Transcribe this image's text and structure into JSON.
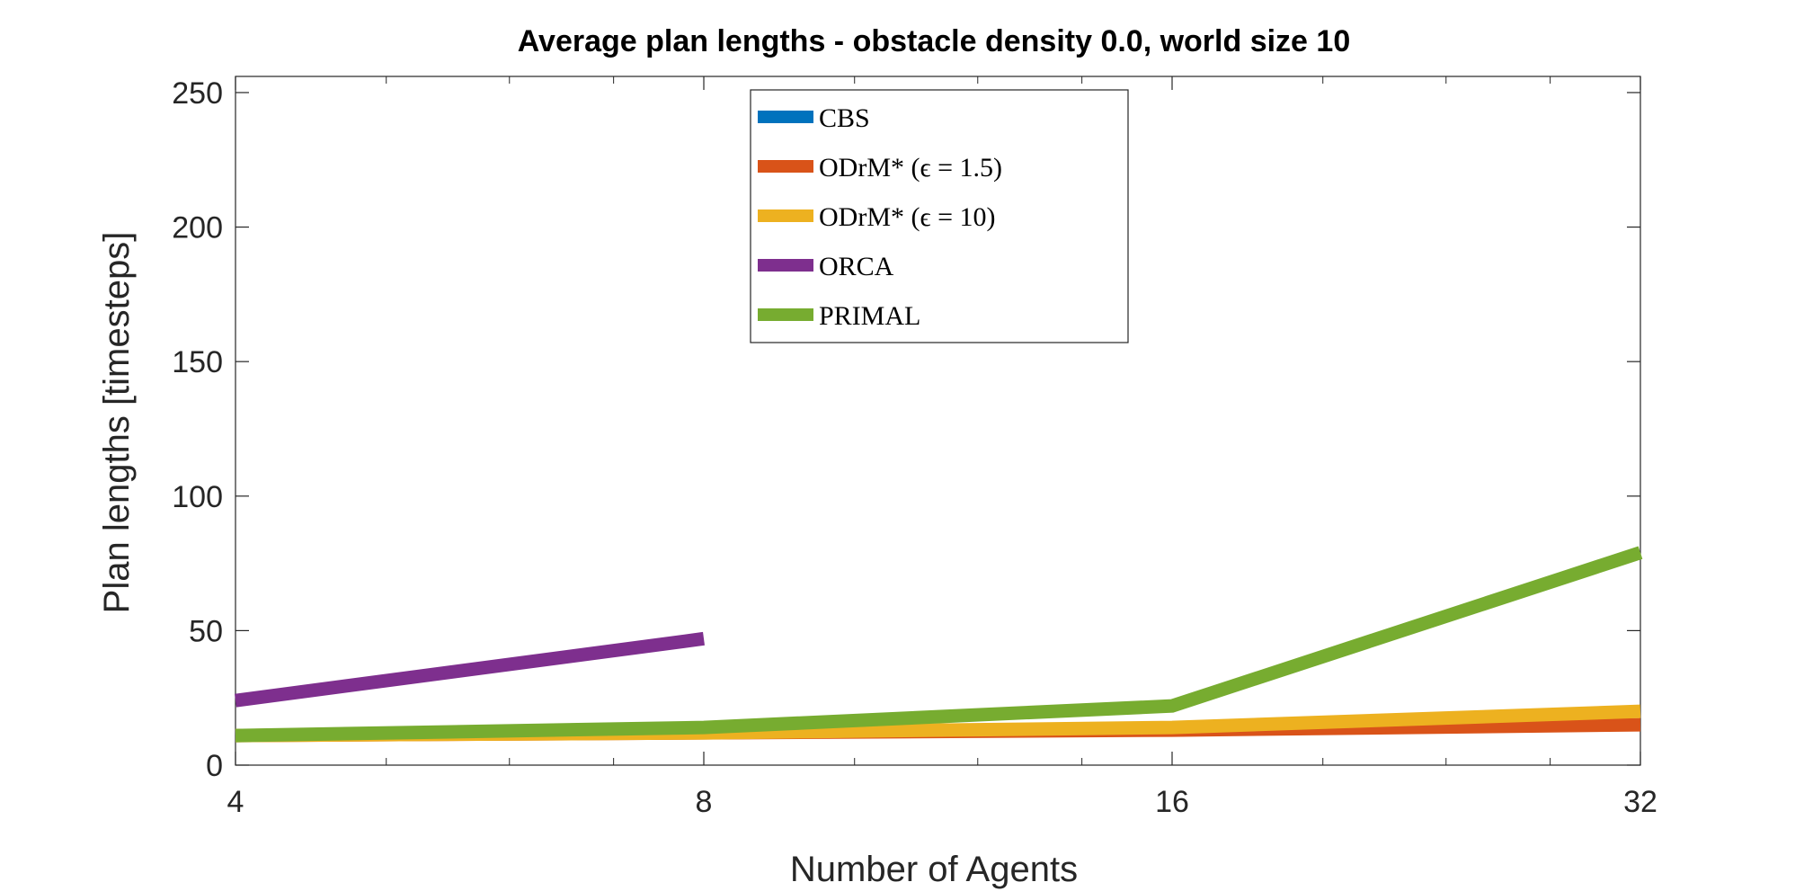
{
  "chart_data": {
    "type": "line",
    "title": "Average plan lengths - obstacle density 0.0, world size 10",
    "xlabel": "Number of Agents",
    "ylabel": "Plan lengths [timesteps]",
    "x": [
      4,
      8,
      16,
      32
    ],
    "x_scale": "log2",
    "xlim": [
      4,
      32
    ],
    "ylim": [
      0,
      256
    ],
    "xticks": [
      "4",
      "8",
      "16",
      "32"
    ],
    "yticks": [
      0,
      50,
      100,
      150,
      200,
      250
    ],
    "grid": false,
    "legend_position": "top-center",
    "series": [
      {
        "name": "CBS",
        "values": [
          11,
          12,
          12,
          null
        ],
        "color": "#0072BD"
      },
      {
        "name": "ODrM* (ϵ = 1.5)",
        "values": [
          11,
          12,
          13,
          15
        ],
        "color": "#D95319"
      },
      {
        "name": "ODrM* (ϵ = 10)",
        "values": [
          11,
          12,
          14,
          20
        ],
        "color": "#EDB120"
      },
      {
        "name": "ORCA",
        "values": [
          24,
          47,
          null,
          null
        ],
        "color": "#7E2F8E"
      },
      {
        "name": "PRIMAL",
        "values": [
          11,
          14,
          22,
          79
        ],
        "color": "#77AC30"
      }
    ]
  }
}
